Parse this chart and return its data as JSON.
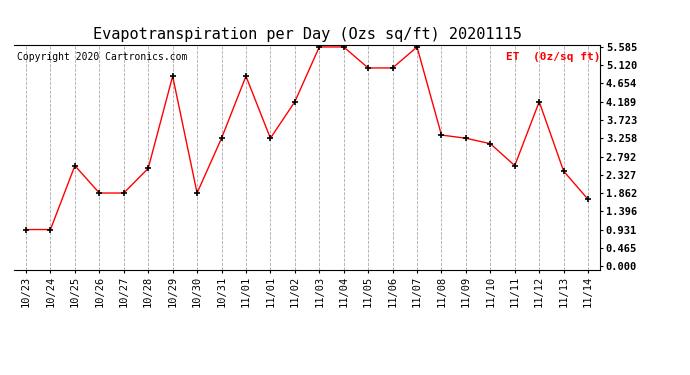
{
  "title": "Evapotranspiration per Day (Ozs sq/ft) 20201115",
  "copyright": "Copyright 2020 Cartronics.com",
  "legend_label": "ET  (0z/sq ft)",
  "x_labels": [
    "10/23",
    "10/24",
    "10/25",
    "10/26",
    "10/27",
    "10/28",
    "10/29",
    "10/30",
    "10/31",
    "11/01",
    "11/01",
    "11/02",
    "11/03",
    "11/04",
    "11/05",
    "11/06",
    "11/07",
    "11/08",
    "11/09",
    "11/10",
    "11/11",
    "11/12",
    "11/13",
    "11/14"
  ],
  "y_values": [
    0.931,
    0.931,
    2.56,
    1.862,
    1.862,
    2.49,
    4.84,
    1.862,
    3.258,
    4.84,
    3.258,
    4.189,
    5.585,
    5.585,
    5.05,
    5.05,
    5.585,
    3.34,
    3.258,
    3.12,
    2.56,
    4.189,
    2.42,
    1.7
  ],
  "x_labels_display": [
    "10/23",
    "10/24",
    "10/25",
    "10/26",
    "10/27",
    "10/28",
    "10/29",
    "10/30",
    "10/31",
    "11/01",
    "11/01",
    "11/02",
    "11/03",
    "11/04",
    "11/05",
    "11/06",
    "11/07",
    "11/08",
    "11/09",
    "11/10",
    "11/11",
    "11/12",
    "11/13",
    "11/14"
  ],
  "y_ticks": [
    0.0,
    0.465,
    0.931,
    1.396,
    1.862,
    2.327,
    2.792,
    3.258,
    3.723,
    4.189,
    4.654,
    5.12,
    5.585
  ],
  "y_min": 0.0,
  "y_max": 5.585,
  "line_color": "red",
  "marker_color": "black",
  "grid_color": "#aaaaaa",
  "bg_color": "white",
  "title_fontsize": 11,
  "copyright_fontsize": 7,
  "legend_color": "red",
  "tick_fontsize": 7.5,
  "legend_fontsize": 8,
  "fig_width": 6.9,
  "fig_height": 3.75,
  "fig_dpi": 100
}
